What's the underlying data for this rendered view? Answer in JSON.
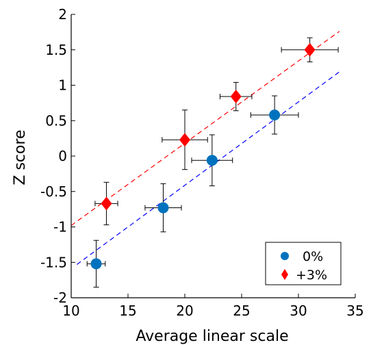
{
  "chart_data": {
    "type": "scatter",
    "title": "",
    "xlabel": "Average linear scale",
    "ylabel": "Z score",
    "xlim": [
      10,
      35
    ],
    "ylim": [
      -2,
      2
    ],
    "xticks": [
      10,
      15,
      20,
      25,
      30,
      35
    ],
    "yticks": [
      -2,
      -1.5,
      -1,
      -0.5,
      0,
      0.5,
      1,
      1.5,
      2
    ],
    "xtick_labels": [
      "10",
      "15",
      "20",
      "25",
      "30",
      "35"
    ],
    "ytick_labels": [
      "-2",
      "-1.5",
      "-1",
      "-0.5",
      "0",
      "0.5",
      "1",
      "1.5",
      "2"
    ],
    "grid": false,
    "legend_position": "bottom-right",
    "series": [
      {
        "name": "0%",
        "marker": "circle",
        "color": "#0072BD",
        "points": [
          {
            "x": 12.2,
            "y": -1.52,
            "xerr": 0.8,
            "yerr": 0.33
          },
          {
            "x": 18.1,
            "y": -0.73,
            "xerr": 1.6,
            "yerr": 0.34
          },
          {
            "x": 22.4,
            "y": -0.06,
            "xerr": 1.8,
            "yerr": 0.36
          },
          {
            "x": 27.9,
            "y": 0.58,
            "xerr": 2.1,
            "yerr": 0.27
          }
        ],
        "fit": {
          "x": [
            10.5,
            33.7
          ],
          "y": [
            -1.53,
            1.2
          ],
          "color": "#0000ff",
          "style": "dashed"
        }
      },
      {
        "name": "+3%",
        "marker": "diamond",
        "color": "#ff0000",
        "points": [
          {
            "x": 13.1,
            "y": -0.67,
            "xerr": 1.0,
            "yerr": 0.3
          },
          {
            "x": 20.0,
            "y": 0.23,
            "xerr": 2.0,
            "yerr": 0.42
          },
          {
            "x": 24.5,
            "y": 0.84,
            "xerr": 1.4,
            "yerr": 0.2
          },
          {
            "x": 31.0,
            "y": 1.5,
            "xerr": 2.5,
            "yerr": 0.17
          }
        ],
        "fit": {
          "x": [
            10,
            33.6
          ],
          "y": [
            -0.98,
            1.76
          ],
          "color": "#ff0000",
          "style": "dashed"
        }
      }
    ]
  }
}
